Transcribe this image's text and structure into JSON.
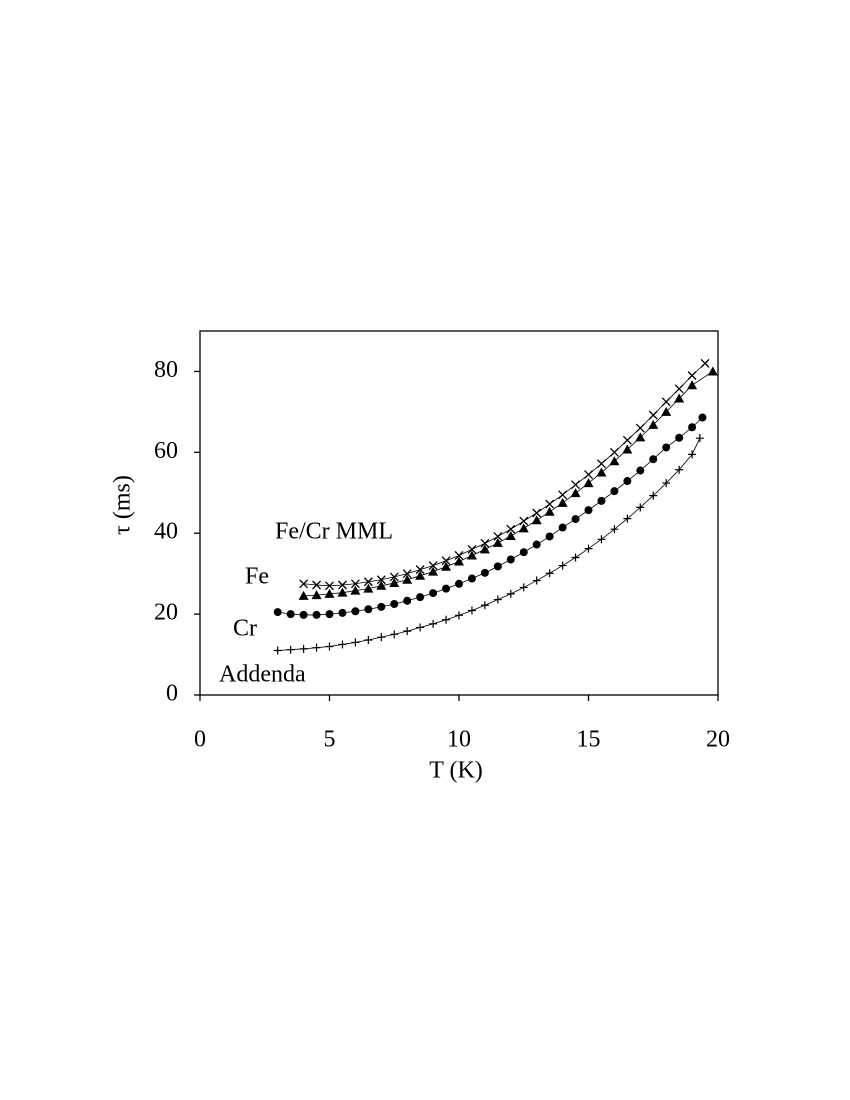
{
  "chart_data": {
    "type": "scatter",
    "xlabel": "T (K)",
    "ylabel": "τ (ms)",
    "xlim": [
      0,
      20
    ],
    "xticks": [
      0,
      5,
      10,
      15,
      20
    ],
    "ylim": [
      0,
      90
    ],
    "yticks": [
      0,
      20,
      40,
      60,
      80
    ],
    "series": [
      {
        "name": "Fe/Cr MML",
        "color": "#000000",
        "marker": "x",
        "x": [
          4,
          4.5,
          5,
          5.5,
          6,
          6.5,
          7,
          7.5,
          8,
          8.5,
          9,
          9.5,
          10,
          10.5,
          11,
          11.5,
          12,
          12.5,
          13,
          13.5,
          14,
          14.5,
          15,
          15.5,
          16,
          16.5,
          17,
          17.5,
          18,
          18.5,
          19,
          19.5
        ],
        "values": [
          27.5,
          27.2,
          27,
          27.2,
          27.5,
          28,
          28.5,
          29.2,
          30,
          31,
          32,
          33.2,
          34.5,
          36,
          37.5,
          39.2,
          41,
          43,
          45,
          47.2,
          49.5,
          52,
          54.5,
          57.2,
          60,
          63,
          66,
          69.2,
          72.5,
          75.7,
          79,
          82
        ]
      },
      {
        "name": "Fe",
        "color": "#000000",
        "marker": "triangle",
        "x": [
          4,
          4.5,
          5,
          5.5,
          6,
          6.5,
          7,
          7.5,
          8,
          8.5,
          9,
          9.5,
          10,
          10.5,
          11,
          11.5,
          12,
          12.5,
          13,
          13.5,
          14,
          14.5,
          15,
          15.5,
          16,
          16.5,
          17,
          17.5,
          18,
          18.5,
          19,
          19.8
        ],
        "values": [
          24.5,
          24.7,
          25,
          25.3,
          25.8,
          26.3,
          27,
          27.7,
          28.5,
          29.5,
          30.5,
          31.7,
          33,
          34.5,
          36,
          37.6,
          39.3,
          41.2,
          43.2,
          45.3,
          47.5,
          49.9,
          52.4,
          55,
          57.8,
          60.7,
          63.7,
          66.8,
          70,
          73.3,
          76.6,
          80
        ]
      },
      {
        "name": "Cr",
        "color": "#000000",
        "marker": "circle",
        "x": [
          3,
          3.5,
          4,
          4.5,
          5,
          5.5,
          6,
          6.5,
          7,
          7.5,
          8,
          8.5,
          9,
          9.5,
          10,
          10.5,
          11,
          11.5,
          12,
          12.5,
          13,
          13.5,
          14,
          14.5,
          15,
          15.5,
          16,
          16.5,
          17,
          17.5,
          18,
          18.5,
          19,
          19.4
        ],
        "values": [
          20.5,
          20,
          19.8,
          19.8,
          20,
          20.3,
          20.7,
          21.2,
          21.8,
          22.5,
          23.3,
          24.2,
          25.2,
          26.3,
          27.5,
          28.8,
          30.2,
          31.8,
          33.5,
          35.3,
          37.2,
          39.2,
          41.4,
          43.5,
          45.7,
          48,
          50.4,
          52.9,
          55.5,
          58.3,
          61.2,
          63.6,
          66.2,
          68.6
        ]
      },
      {
        "name": "Addenda",
        "color": "#000000",
        "marker": "plus",
        "x": [
          3,
          3.5,
          4,
          4.5,
          5,
          5.5,
          6,
          6.5,
          7,
          7.5,
          8,
          8.5,
          9,
          9.5,
          10,
          10.5,
          11,
          11.5,
          12,
          12.5,
          13,
          13.5,
          14,
          14.5,
          15,
          15.5,
          16,
          16.5,
          17,
          17.5,
          18,
          18.5,
          19,
          19.3
        ],
        "values": [
          11,
          11.2,
          11.4,
          11.7,
          12,
          12.5,
          13,
          13.6,
          14.3,
          15,
          15.8,
          16.7,
          17.6,
          18.6,
          19.7,
          20.9,
          22.2,
          23.6,
          25,
          26.6,
          28.3,
          30.1,
          32,
          34,
          36.2,
          38.5,
          41,
          43.6,
          46.4,
          49.3,
          52.4,
          55.7,
          59.5,
          63.5
        ]
      }
    ]
  }
}
